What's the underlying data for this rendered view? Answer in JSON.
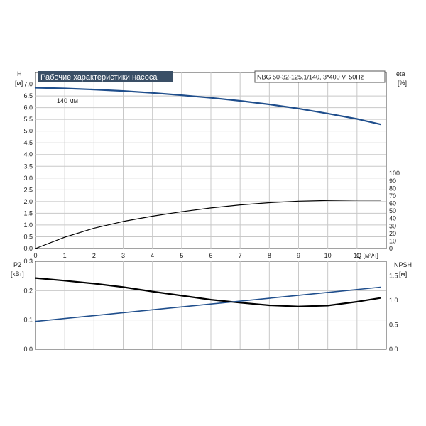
{
  "title": "Рабочие характеристики насоса",
  "model": "NBG 50-32-125.1/140, 3*400 V, 50Hz",
  "colors": {
    "blue": "#1f4e8c",
    "title_bg": "#3a4f66",
    "black": "#000000",
    "grid": "#c8c8c8"
  },
  "chart_data": [
    {
      "type": "line",
      "name": "upper",
      "xlabel": "Q [м³/ч]",
      "ylabel_left": [
        "H",
        "[м]"
      ],
      "ylabel_right": [
        "eta",
        "[%]"
      ],
      "x_ticks": [
        "0",
        "1",
        "2",
        "3",
        "4",
        "5",
        "6",
        "7",
        "8",
        "9",
        "10",
        "11"
      ],
      "y_left_ticks": [
        "0.0",
        "0.5",
        "1.0",
        "1.5",
        "2.0",
        "2.5",
        "3.0",
        "3.5",
        "4.0",
        "4.5",
        "5.0",
        "5.5",
        "6.0",
        "6.5",
        "7.0"
      ],
      "y_right_ticks": [
        "0",
        "10",
        "20",
        "30",
        "40",
        "50",
        "60",
        "70",
        "80",
        "90",
        "100"
      ],
      "xlim": [
        0,
        12
      ],
      "ylim_left": [
        0,
        7.5
      ],
      "ylim_right": [
        0,
        234.4
      ],
      "annotation": "140 мм",
      "series": [
        {
          "axis": "left",
          "color": "#1f4e8c",
          "x": [
            0,
            1,
            2,
            3,
            4,
            5,
            6,
            7,
            8,
            9,
            10,
            11,
            11.8
          ],
          "y": [
            6.85,
            6.82,
            6.77,
            6.71,
            6.63,
            6.53,
            6.42,
            6.29,
            6.14,
            5.96,
            5.75,
            5.52,
            5.29
          ]
        },
        {
          "axis": "right",
          "color": "#000000",
          "x": [
            0,
            1,
            2,
            3,
            4,
            5,
            6,
            7,
            8,
            9,
            10,
            11,
            11.8
          ],
          "y": [
            0,
            15,
            27,
            36,
            43,
            49,
            54,
            58,
            61,
            63,
            64,
            64.5,
            64.5
          ]
        }
      ]
    },
    {
      "type": "line",
      "name": "lower",
      "ylabel_left": [
        "P2",
        "[кВт]"
      ],
      "ylabel_right": [
        "NPSH",
        "[м]"
      ],
      "y_left_ticks": [
        "0.0",
        "0.1",
        "0.2",
        "0.3"
      ],
      "y_right_ticks": [
        "0.0",
        "0.5",
        "1.0",
        "1.5"
      ],
      "xlim": [
        0,
        12
      ],
      "ylim_left": [
        0,
        0.3
      ],
      "ylim_right": [
        0,
        1.8
      ],
      "series": [
        {
          "axis": "left",
          "color": "#000000",
          "x": [
            0,
            1,
            2,
            3,
            4,
            5,
            6,
            7,
            8,
            9,
            10,
            11,
            11.8
          ],
          "y": [
            0.243,
            0.234,
            0.224,
            0.212,
            0.197,
            0.183,
            0.169,
            0.159,
            0.15,
            0.146,
            0.149,
            0.162,
            0.175
          ]
        },
        {
          "axis": "right",
          "color": "#1f4e8c",
          "x": [
            0,
            11.8
          ],
          "y": [
            0.57,
            1.27
          ]
        }
      ]
    }
  ]
}
